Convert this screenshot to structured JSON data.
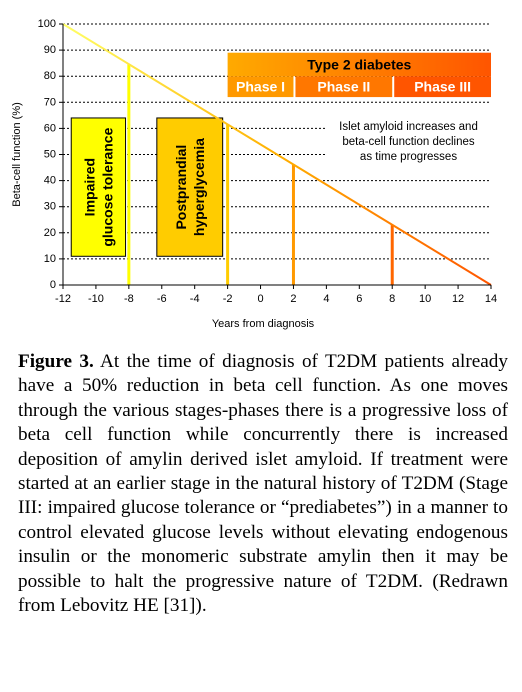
{
  "chart_data": {
    "type": "line",
    "xlabel": "Years from diagnosis",
    "ylabel": "Beta-cell function (%)",
    "xlim": [
      -12,
      14
    ],
    "ylim": [
      0,
      100
    ],
    "x_ticks": [
      "-12",
      "-10",
      "-8",
      "-6",
      "-4",
      "-2",
      "0",
      "2",
      "4",
      "6",
      "8",
      "10",
      "12",
      "14"
    ],
    "y_ticks": [
      "0",
      "10",
      "20",
      "30",
      "40",
      "50",
      "60",
      "70",
      "80",
      "90",
      "100"
    ],
    "grid": true,
    "series": [
      {
        "x": [
          -12,
          14
        ],
        "values": [
          100,
          0
        ]
      }
    ],
    "markers": [
      {
        "x": -8,
        "value": 84.6,
        "color": "#ffff00"
      },
      {
        "x": -2,
        "value": 61.5,
        "color": "#ffcc00"
      },
      {
        "x": 2,
        "value": 46.2,
        "color": "#ff9900"
      },
      {
        "x": 8,
        "value": 23.1,
        "color": "#ff6600"
      }
    ],
    "stage_boxes": [
      {
        "text": [
          "Impaired",
          "glucose tolerance"
        ],
        "x_start": -11.5,
        "x_end": -8.2,
        "y_start": 11,
        "y_end": 64,
        "fill": "#ffff00"
      },
      {
        "text": [
          "Postprandial",
          "hyperglycemia"
        ],
        "x_start": -6.3,
        "x_end": -2.3,
        "y_start": 11,
        "y_end": 64,
        "fill": "#ffcc00"
      }
    ],
    "type2_title": "Type 2 diabetes",
    "phases": [
      {
        "label": "Phase I",
        "x_start": -2,
        "x_end": 2,
        "color": "#ff9900"
      },
      {
        "label": "Phase II",
        "x_start": 2,
        "x_end": 8,
        "color": "#ff7700"
      },
      {
        "label": "Phase III",
        "x_start": 8,
        "x_end": 14,
        "color": "#ff5500"
      }
    ],
    "annotation": [
      "Islet amyloid increases and",
      "beta-cell function declines",
      "as time progresses"
    ],
    "colors": {
      "line": "#ffff66",
      "line_end": "#ff6600",
      "grid": "#000000"
    }
  },
  "caption": {
    "label": "Figure 3.",
    "text": "At the time of diagnosis of T2DM patients already have a 50% reduction in beta cell function. As one moves through the various stages-phases there is a progressive loss of beta cell function while concurrently there is increased deposition of amylin derived islet amyloid. If treatment were started at an earlier stage in the natural history of T2DM (Stage III: impaired glucose tolerance or “prediabetes”) in a manner to control elevated glucose levels without elevating endogenous insulin or the monomeric substrate amylin then it may be possible to halt the progressive nature of T2DM. (Redrawn from Lebovitz HE [31])."
  }
}
